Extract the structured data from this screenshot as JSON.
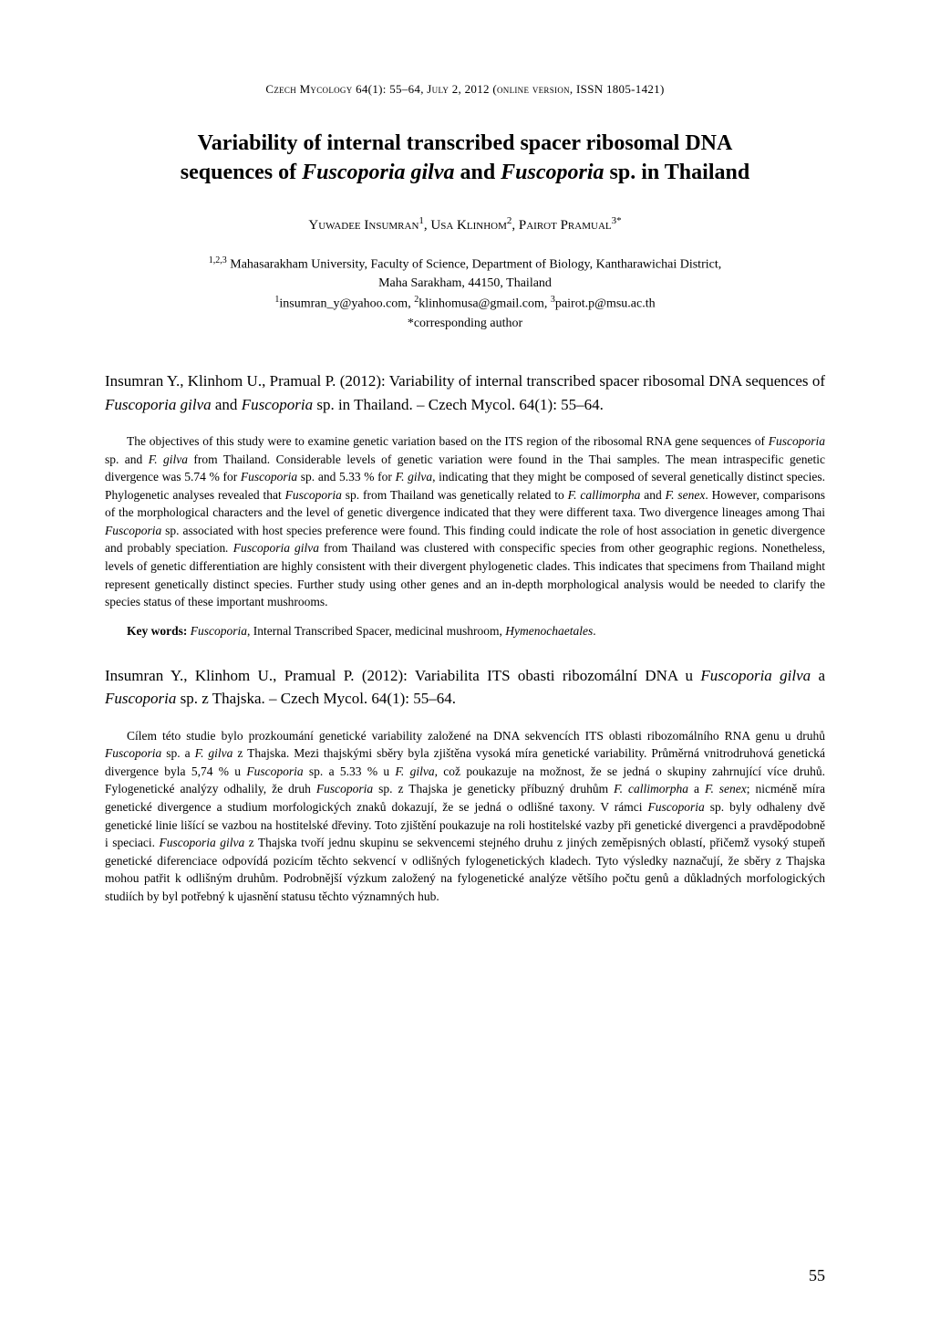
{
  "journal_header": "Czech Mycology 64(1): 55–64, July 2, 2012 (online version, ISSN 1805-1421)",
  "title_line1": "Variability of internal transcribed spacer ribosomal DNA",
  "title_line2_a": "sequences of ",
  "title_line2_b": "Fuscoporia gilva",
  "title_line2_c": " and ",
  "title_line2_d": "Fuscoporia",
  "title_line2_e": " sp. in Thailand",
  "author1": "Yuwadee Insumran",
  "author1_sup": "1",
  "author2": "Usa Klinhom",
  "author2_sup": "2",
  "author3": "Pairot Pramual",
  "author3_sup": "3*",
  "affiliation_line1": "Mahasarakham University, Faculty of Science, Department of Biology, Kantharawichai District,",
  "affiliation_line1_sup": "1,2,3",
  "affiliation_line2": "Maha Sarakham, 44150, Thailand",
  "email1": "insumran_y@yahoo.com",
  "email1_sup": "1",
  "email2": "klinhomusa@gmail.com",
  "email2_sup": "2",
  "email3": "pairot.p@msu.ac.th",
  "email3_sup": "3",
  "corresponding": "*corresponding author",
  "citation_a": "Insumran Y., Klinhom U., Pramual P. (2012): Variability of internal transcribed spacer ribosomal DNA sequences of ",
  "citation_b": "Fuscoporia gilva",
  "citation_c": " and ",
  "citation_d": "Fuscoporia",
  "citation_e": " sp. in Thailand. – Czech Mycol. 64(1): 55–64.",
  "abstract_a": "The objectives of this study were to examine genetic variation based on the ITS region of the ribosomal RNA gene sequences of ",
  "abstract_b": "Fuscoporia",
  "abstract_c": " sp. and ",
  "abstract_d": "F. gilva",
  "abstract_e": " from Thailand. Considerable levels of genetic variation were found in the Thai samples. The mean intraspecific genetic divergence was 5.74 % for ",
  "abstract_f": "Fuscoporia",
  "abstract_g": " sp. and 5.33 % for ",
  "abstract_h": "F. gilva",
  "abstract_i": ", indicating that they might be composed of several genetically distinct species. Phylogenetic analyses revealed that ",
  "abstract_j": "Fuscoporia",
  "abstract_k": " sp. from Thailand was genetically related to ",
  "abstract_l": "F. callimorpha",
  "abstract_m": " and ",
  "abstract_n": "F. senex",
  "abstract_o": ". However, comparisons of the morphological characters and the level of genetic divergence indicated that they were different taxa. Two divergence lineages among Thai ",
  "abstract_p": "Fuscoporia",
  "abstract_q": " sp. associated with host species preference were found. This finding could indicate the role of host association in genetic divergence and probably speciation",
  "abstract_r": ". Fuscoporia gilva",
  "abstract_s": " from Thailand was clustered with conspecific species from other geographic regions. Nonetheless, levels of genetic differentiation are highly consistent with their divergent phylogenetic clades. This indicates that specimens from Thailand might represent genetically distinct species. Further study using other genes and an in-depth morphological analysis would be needed to clarify the species status of these important mushrooms.",
  "keywords_label": "Key words:",
  "keywords_a": " ",
  "keywords_b": "Fuscoporia",
  "keywords_c": ", Internal Transcribed Spacer, medicinal mushroom, ",
  "keywords_d": "Hymenochaetales",
  "keywords_e": ".",
  "citation2_a": "Insumran Y., Klinhom U., Pramual P. (2012): Variabilita ITS obasti ribozomální DNA u ",
  "citation2_b": "Fuscoporia gilva",
  "citation2_c": " a ",
  "citation2_d": "Fuscoporia",
  "citation2_e": " sp. z Thajska. – Czech Mycol. 64(1): 55–64.",
  "abstract2_a": "Cílem této studie bylo prozkoumání genetické variability založené na DNA sekvencích ITS oblasti ribozomálního RNA genu u druhů ",
  "abstract2_b": "Fuscoporia",
  "abstract2_c": " sp. a ",
  "abstract2_d": "F. gilva",
  "abstract2_e": " z Thajska. Mezi thajskými sběry byla zjištěna vysoká míra genetické variability. Průměrná vnitrodruhová genetická divergence byla 5,74 % u ",
  "abstract2_f": "Fuscoporia",
  "abstract2_g": " sp. a 5.33 % u ",
  "abstract2_h": "F. gilva",
  "abstract2_i": ", což poukazuje na možnost, že se jedná o skupiny zahrnující více druhů. Fylogenetické analýzy odhalily, že druh ",
  "abstract2_j": "Fuscoporia",
  "abstract2_k": " sp. z Thajska je geneticky příbuzný druhům ",
  "abstract2_l": "F. callimorpha",
  "abstract2_m": " a ",
  "abstract2_n": "F. senex",
  "abstract2_o": "; nicméně míra genetické divergence a studium morfologických znaků dokazují, že se jedná o odlišné taxony. V rámci ",
  "abstract2_p": "Fuscoporia",
  "abstract2_q": " sp. byly odhaleny dvě genetické linie lišící se vazbou na hostitelské dřeviny. Toto zjištění poukazuje na roli hostitelské vazby při genetické divergenci a pravděpodobně i speciaci. ",
  "abstract2_r": "Fuscoporia gilva",
  "abstract2_s": " z Thajska tvoří jednu skupinu se sekvencemi stejného druhu z jiných zeměpisných oblastí, přičemž vysoký stupeň genetické diferenciace odpovídá pozicím těchto sekvencí v odlišných fylogenetických kladech. Tyto výsledky naznačují, že sběry z Thajska mohou patřit k odlišným druhům. Podrobnější výzkum založený na fylogenetické analýze většího počtu genů a důkladných morfologických studiích by byl potřebný k ujasnění statusu těchto významných hub.",
  "page_number": "55"
}
